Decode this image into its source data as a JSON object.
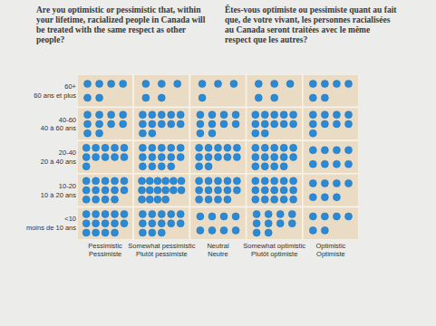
{
  "chart_data": {
    "type": "dot_grid",
    "title": "Are you optimistic or pessimistic that, within your lifetime, racialized people in Canada will be treated with the same respect as other people?",
    "title_fr": "Êtes-vous optimiste ou pessimiste quant au fait que, de votre vivant, les personnes racialisées au Canada seront traitées avec le même respect que les autres?",
    "categories": [
      "Pessimistic",
      "Somewhat pessimistic",
      "Neutral",
      "Somewhat optimistic",
      "Optimistic"
    ],
    "categories_fr": [
      "Pessimiste",
      "Plutôt pessimiste",
      "Neutre",
      "Plutôt optimiste",
      "Optimiste"
    ],
    "color": "#2b8ad6",
    "series": [
      {
        "name": "60+",
        "name_fr": "60 ans et plus",
        "values": [
          6,
          5,
          4,
          5,
          6
        ]
      },
      {
        "name": "40-60",
        "name_fr": "40 à 60 ans",
        "values": [
          10,
          12,
          10,
          12,
          9
        ]
      },
      {
        "name": "20-40",
        "name_fr": "20 à 40 ans",
        "values": [
          11,
          14,
          12,
          14,
          8
        ]
      },
      {
        "name": "10-20",
        "name_fr": "10 à 20 ans",
        "values": [
          14,
          16,
          14,
          15,
          7
        ]
      },
      {
        "name": "<10",
        "name_fr": "moins de 10 ans",
        "values": [
          14,
          13,
          8,
          10,
          6
        ]
      }
    ]
  }
}
